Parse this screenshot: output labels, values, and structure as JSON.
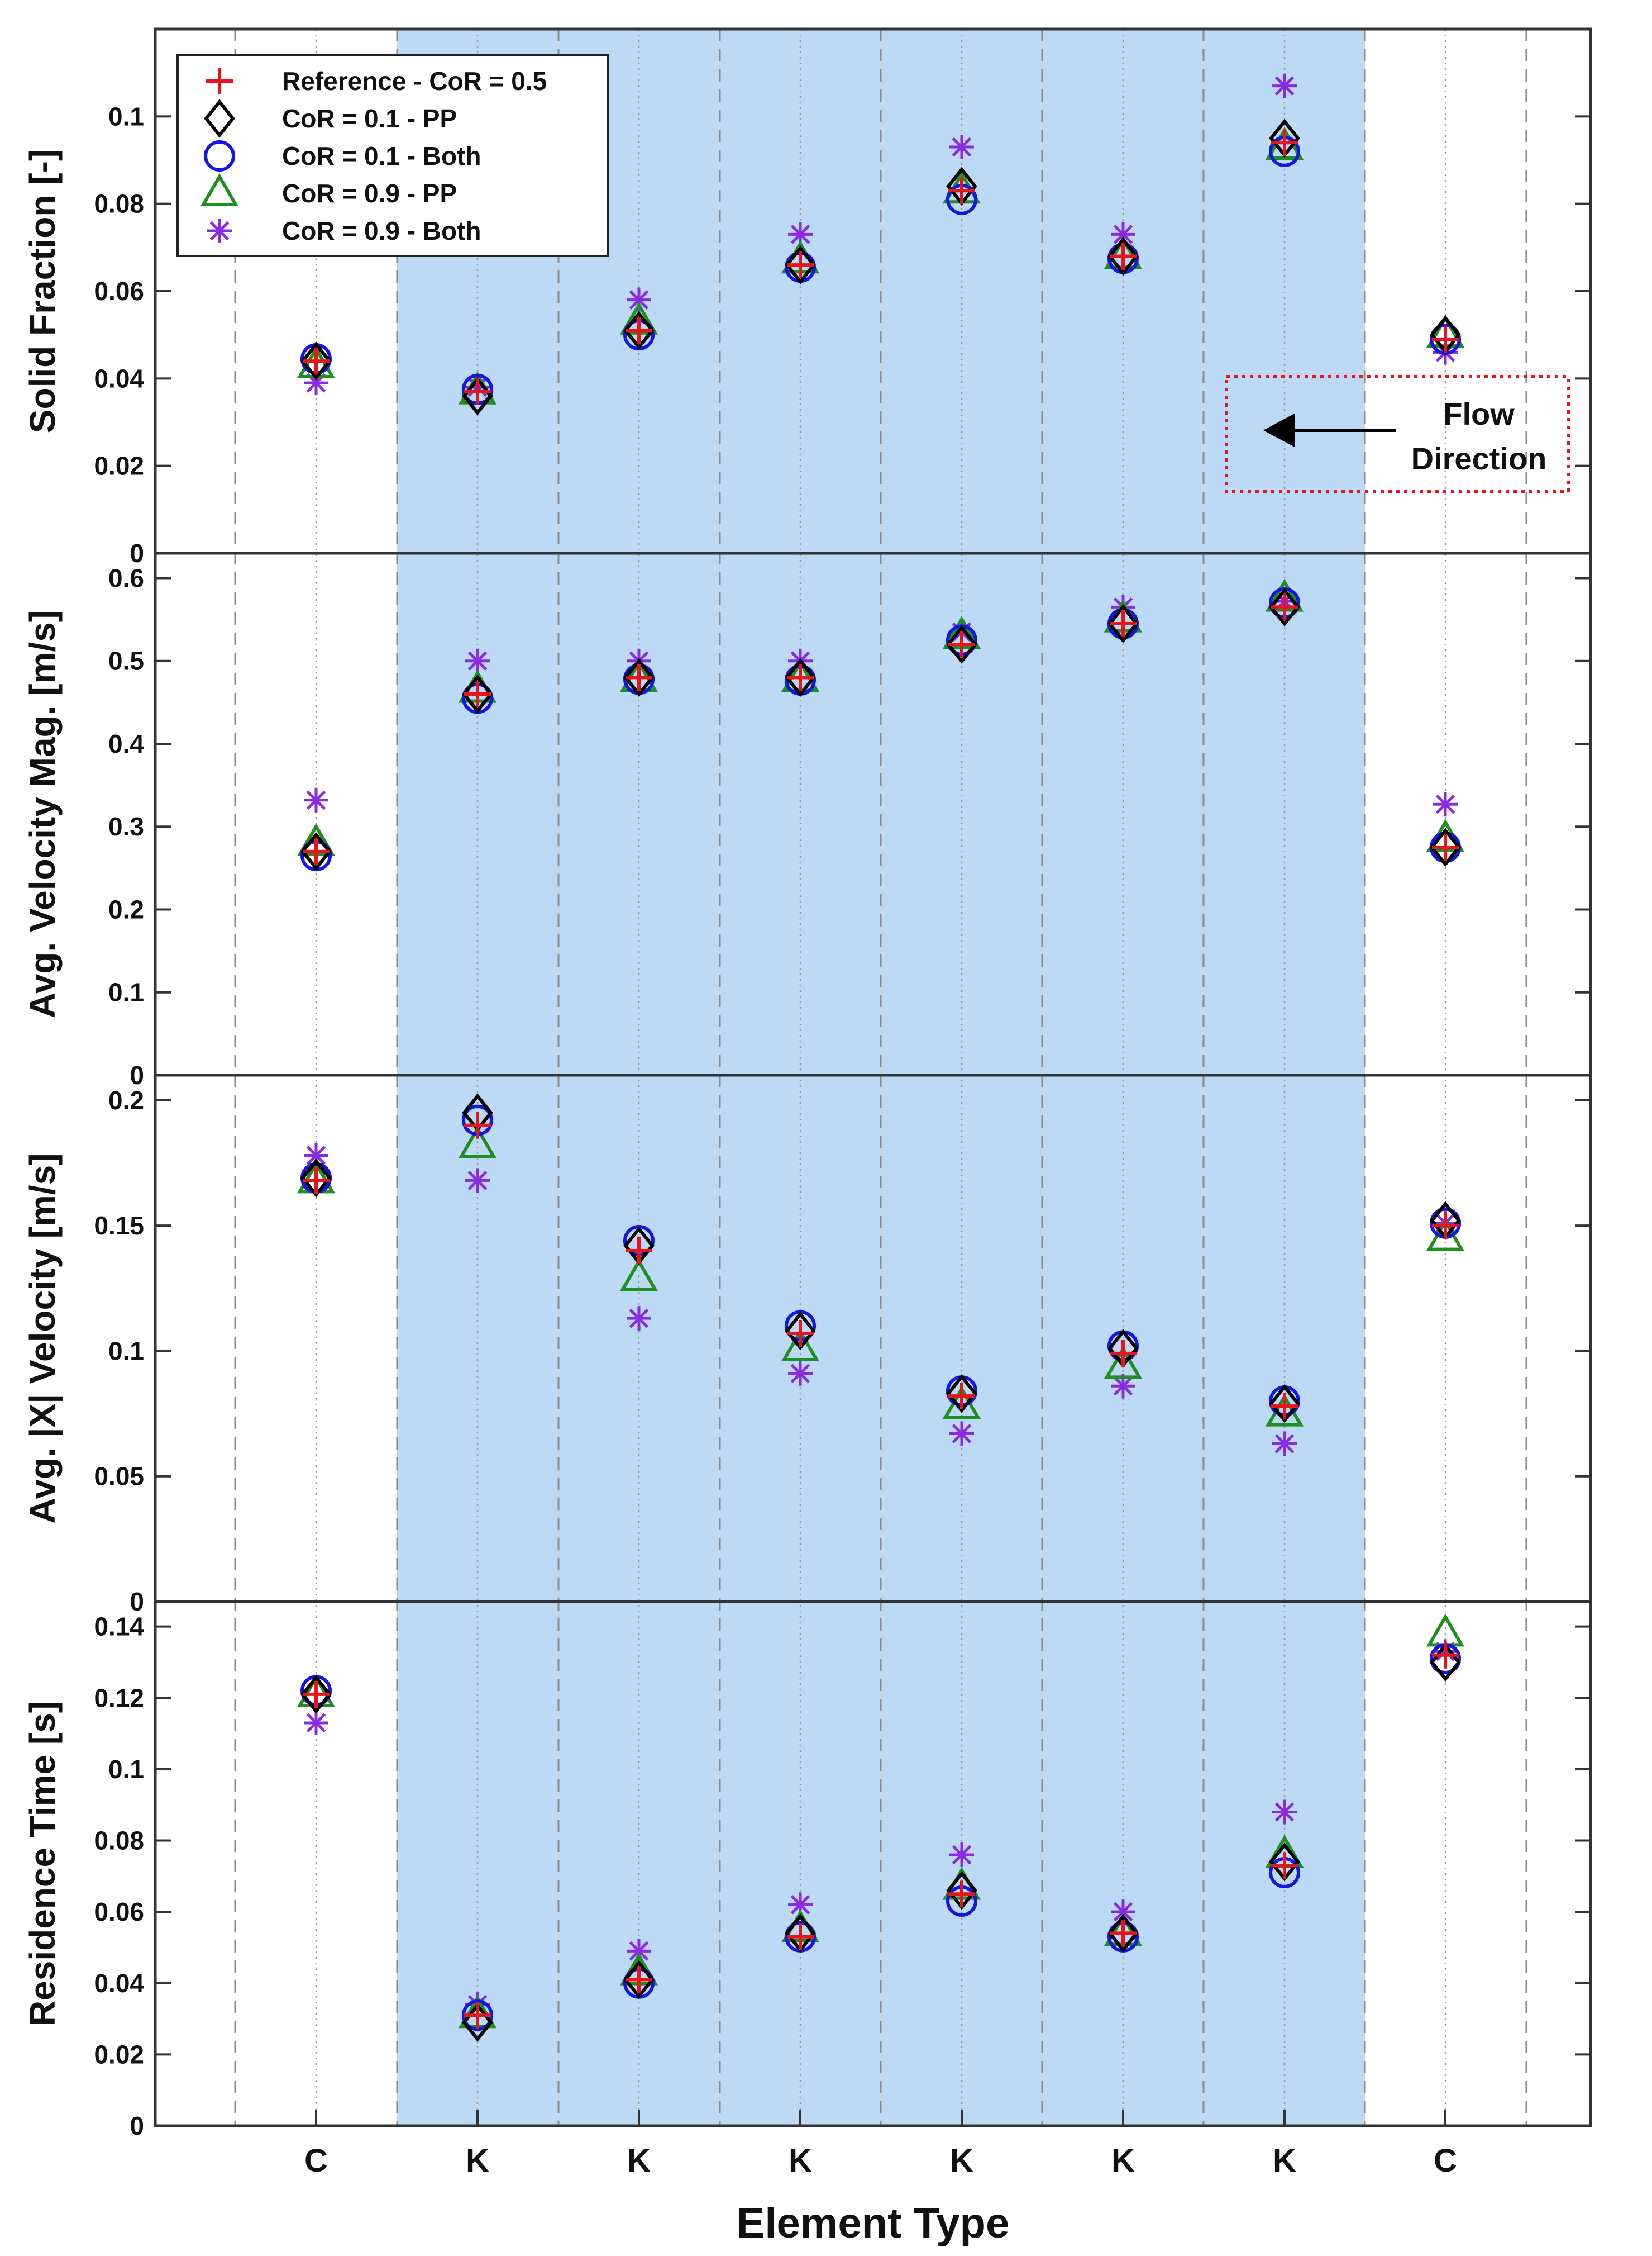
{
  "chart_data": {
    "type": "scatter",
    "xlabel": "Element Type",
    "categories": [
      "C",
      "K",
      "K",
      "K",
      "K",
      "K",
      "K",
      "C"
    ],
    "shaded_categories": [
      1,
      6
    ],
    "legend": {
      "placement": "top-left of first panel",
      "entries": [
        {
          "name": "Reference - CoR = 0.5",
          "marker": "plus",
          "color": "#e8141c"
        },
        {
          "name": "CoR = 0.1 - PP",
          "marker": "diamond",
          "color": "#000000"
        },
        {
          "name": "CoR = 0.1 - Both",
          "marker": "circle",
          "color": "#1414e6"
        },
        {
          "name": "CoR = 0.9 - PP",
          "marker": "triangle",
          "color": "#1f8f1f"
        },
        {
          "name": "CoR = 0.9 - Both",
          "marker": "asterisk",
          "color": "#8a2be2"
        }
      ]
    },
    "annotation": {
      "text_line1": "Flow",
      "text_line2": "Direction",
      "arrow": "left"
    },
    "colors": {
      "shade": "#bcd9f5",
      "frame": "#333333",
      "annotation_box": "#e8141c"
    },
    "grid": "vertical dashed boundaries and dotted category lines",
    "panels": [
      {
        "ylabel": "Solid Fraction [-]",
        "ylim": [
          0,
          0.12
        ],
        "yticks": [
          0,
          0.02,
          0.04,
          0.06,
          0.08,
          0.1
        ],
        "ytick_labels": [
          "0",
          "0.02",
          "0.04",
          "0.06",
          "0.08",
          "0.1"
        ],
        "series": [
          {
            "name": "Reference - CoR = 0.5",
            "values": [
              0.044,
              0.037,
              0.051,
              0.066,
              0.083,
              0.068,
              0.094,
              0.049
            ]
          },
          {
            "name": "CoR = 0.1 - PP",
            "values": [
              0.044,
              0.036,
              0.051,
              0.066,
              0.084,
              0.068,
              0.095,
              0.05
            ]
          },
          {
            "name": "CoR = 0.1 - Both",
            "values": [
              0.0445,
              0.0375,
              0.05,
              0.0655,
              0.081,
              0.0675,
              0.092,
              0.049
            ]
          },
          {
            "name": "CoR = 0.9 - PP",
            "values": [
              0.043,
              0.037,
              0.053,
              0.067,
              0.083,
              0.068,
              0.093,
              0.05
            ]
          },
          {
            "name": "CoR = 0.9 - Both",
            "values": [
              0.039,
              0.038,
              0.058,
              0.073,
              0.093,
              0.073,
              0.107,
              0.046
            ]
          }
        ]
      },
      {
        "ylabel": "Avg. Velocity Mag. [m/s]",
        "ylim": [
          0,
          0.63
        ],
        "yticks": [
          0,
          0.1,
          0.2,
          0.3,
          0.4,
          0.5,
          0.6
        ],
        "ytick_labels": [
          "0",
          "0.1",
          "0.2",
          "0.3",
          "0.4",
          "0.5",
          "0.6"
        ],
        "series": [
          {
            "name": "Reference - CoR = 0.5",
            "values": [
              0.27,
              0.46,
              0.48,
              0.48,
              0.52,
              0.545,
              0.565,
              0.275
            ]
          },
          {
            "name": "CoR = 0.1 - PP",
            "values": [
              0.27,
              0.46,
              0.48,
              0.48,
              0.52,
              0.545,
              0.565,
              0.275
            ]
          },
          {
            "name": "CoR = 0.1 - Both",
            "values": [
              0.265,
              0.455,
              0.478,
              0.477,
              0.525,
              0.545,
              0.57,
              0.275
            ]
          },
          {
            "name": "CoR = 0.9 - PP",
            "values": [
              0.28,
              0.465,
              0.478,
              0.478,
              0.53,
              0.55,
              0.575,
              0.285
            ]
          },
          {
            "name": "CoR = 0.9 - Both",
            "values": [
              0.332,
              0.5,
              0.5,
              0.5,
              0.535,
              0.565,
              0.572,
              0.327
            ]
          }
        ]
      },
      {
        "ylabel": "Avg. |X| Velocity [m/s]",
        "ylim": [
          0,
          0.21
        ],
        "yticks": [
          0,
          0.05,
          0.1,
          0.15,
          0.2
        ],
        "ytick_labels": [
          "0",
          "0.05",
          "0.1",
          "0.15",
          "0.2"
        ],
        "series": [
          {
            "name": "Reference - CoR = 0.5",
            "values": [
              0.168,
              0.19,
              0.14,
              0.107,
              0.082,
              0.099,
              0.078,
              0.15
            ]
          },
          {
            "name": "CoR = 0.1 - PP",
            "values": [
              0.169,
              0.195,
              0.142,
              0.108,
              0.083,
              0.101,
              0.079,
              0.152
            ]
          },
          {
            "name": "CoR = 0.1 - Both",
            "values": [
              0.169,
              0.192,
              0.144,
              0.11,
              0.084,
              0.102,
              0.08,
              0.151
            ]
          },
          {
            "name": "CoR = 0.9 - PP",
            "values": [
              0.168,
              0.182,
              0.129,
              0.101,
              0.078,
              0.094,
              0.075,
              0.145
            ]
          },
          {
            "name": "CoR = 0.9 - Both",
            "values": [
              0.178,
              0.168,
              0.113,
              0.091,
              0.067,
              0.086,
              0.063,
              0.151
            ]
          }
        ]
      },
      {
        "ylabel": "Residence Time [s]",
        "ylim": [
          0,
          0.147
        ],
        "yticks": [
          0,
          0.02,
          0.04,
          0.06,
          0.08,
          0.1,
          0.12,
          0.14
        ],
        "ytick_labels": [
          "0",
          "0.02",
          "0.04",
          "0.06",
          "0.08",
          "0.1",
          "0.12",
          "0.14"
        ],
        "series": [
          {
            "name": "Reference - CoR = 0.5",
            "values": [
              0.121,
              0.031,
              0.041,
              0.053,
              0.065,
              0.054,
              0.073,
              0.132
            ]
          },
          {
            "name": "CoR = 0.1 - PP",
            "values": [
              0.121,
              0.029,
              0.041,
              0.054,
              0.066,
              0.054,
              0.074,
              0.13
            ]
          },
          {
            "name": "CoR = 0.1 - Both",
            "values": [
              0.122,
              0.031,
              0.04,
              0.053,
              0.063,
              0.053,
              0.071,
              0.131
            ]
          },
          {
            "name": "CoR = 0.9 - PP",
            "values": [
              0.121,
              0.031,
              0.043,
              0.055,
              0.067,
              0.054,
              0.076,
              0.138
            ]
          },
          {
            "name": "CoR = 0.9 - Both",
            "values": [
              0.113,
              0.034,
              0.049,
              0.062,
              0.076,
              0.06,
              0.088,
              0.133
            ]
          }
        ]
      }
    ]
  }
}
